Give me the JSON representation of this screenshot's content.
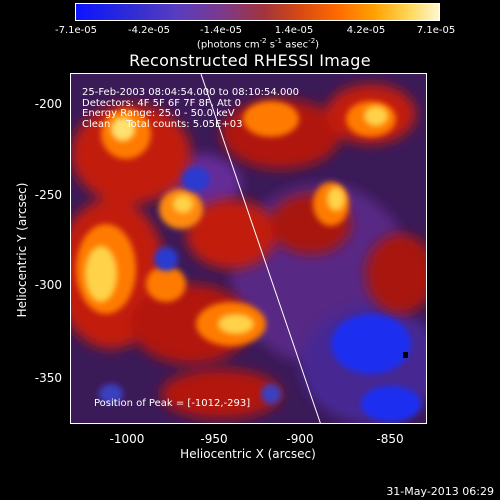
{
  "colorbar": {
    "ticks": [
      "-7.1e-05",
      "-4.2e-05",
      "-1.4e-05",
      "1.4e-05",
      "4.2e-05",
      "7.1e-05"
    ],
    "unit_prefix": "(photons cm",
    "unit_exp1": "-2",
    "unit_mid": " s",
    "unit_exp2": "-1",
    "unit_suffix": " asec",
    "unit_exp3": "-2",
    "unit_close": ")"
  },
  "plot": {
    "title": "Reconstructed RHESSI Image",
    "info_lines": [
      "25-Feb-2003 08:04:54.000 to 08:10:54.000",
      "Detectors: 4F 5F 6F 7F 8F, Att 0",
      "Energy Range: 25.0 - 50.0 keV",
      "Clean     Total counts: 5.05E+03"
    ],
    "peak_label": "Position of Peak = [-1012,-293]"
  },
  "axes": {
    "xlabel": "Heliocentric X (arcsec)",
    "ylabel": "Heliocentric Y (arcsec)",
    "xticks": [
      "-1000",
      "-950",
      "-900",
      "-850"
    ],
    "yticks": [
      "-200",
      "-250",
      "-300",
      "-350"
    ]
  },
  "footer": {
    "timestamp": "31-May-2013 06:29"
  },
  "colors": {
    "background": "#000000",
    "dark_purple": "#3b1a58",
    "purple": "#5b2c8a",
    "blue": "#2030d0",
    "red": "#c21a08",
    "orange": "#ff7a00",
    "yellow": "#ffd24a"
  }
}
